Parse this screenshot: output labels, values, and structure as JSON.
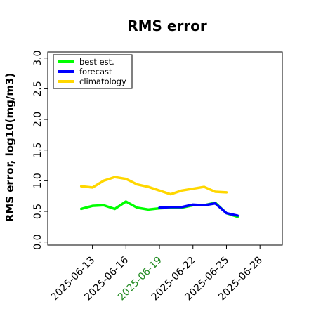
{
  "chart_data": {
    "type": "line",
    "title": "RMS error",
    "xlabel": "",
    "ylabel": "RMS error, log10(mg/m3)",
    "ylim": [
      -0.05,
      3.1
    ],
    "y_ticks": [
      0.0,
      0.5,
      1.0,
      1.5,
      2.0,
      2.5,
      3.0
    ],
    "y_tick_labels": [
      "0.0",
      "0.5",
      "1.0",
      "1.5",
      "2.0",
      "2.5",
      "3.0"
    ],
    "x_ticks": [
      "2025-06-13",
      "2025-06-16",
      "2025-06-19",
      "2025-06-22",
      "2025-06-25",
      "2025-06-28"
    ],
    "x_tick_highlight": "2025-06-19",
    "x_tick_highlight_color": "#228B22",
    "xlim": [
      "2025-06-09",
      "2025-06-30"
    ],
    "grid": false,
    "legend": "top-left",
    "series": [
      {
        "name": "best est.",
        "color": "#00ff00",
        "points": [
          [
            "2025-06-12",
            0.54
          ],
          [
            "2025-06-13",
            0.59
          ],
          [
            "2025-06-14",
            0.6
          ],
          [
            "2025-06-15",
            0.54
          ],
          [
            "2025-06-16",
            0.66
          ],
          [
            "2025-06-17",
            0.56
          ],
          [
            "2025-06-18",
            0.53
          ],
          [
            "2025-06-19",
            0.55
          ],
          [
            "2025-06-20",
            0.56
          ],
          [
            "2025-06-21",
            0.56
          ],
          [
            "2025-06-22",
            0.6
          ],
          [
            "2025-06-23",
            0.6
          ],
          [
            "2025-06-24",
            0.64
          ],
          [
            "2025-06-25",
            0.47
          ],
          [
            "2025-06-26",
            0.41
          ]
        ]
      },
      {
        "name": "forecast",
        "color": "#0000ff",
        "points": [
          [
            "2025-06-19",
            0.56
          ],
          [
            "2025-06-20",
            0.57
          ],
          [
            "2025-06-21",
            0.57
          ],
          [
            "2025-06-22",
            0.61
          ],
          [
            "2025-06-23",
            0.6
          ],
          [
            "2025-06-24",
            0.63
          ],
          [
            "2025-06-25",
            0.47
          ],
          [
            "2025-06-26",
            0.43
          ]
        ]
      },
      {
        "name": "climatology",
        "color": "#ffd700",
        "points": [
          [
            "2025-06-12",
            0.91
          ],
          [
            "2025-06-13",
            0.89
          ],
          [
            "2025-06-14",
            1.0
          ],
          [
            "2025-06-15",
            1.06
          ],
          [
            "2025-06-16",
            1.03
          ],
          [
            "2025-06-17",
            0.94
          ],
          [
            "2025-06-18",
            0.9
          ],
          [
            "2025-06-19",
            0.84
          ],
          [
            "2025-06-20",
            0.78
          ],
          [
            "2025-06-21",
            0.84
          ],
          [
            "2025-06-22",
            0.87
          ],
          [
            "2025-06-23",
            0.9
          ],
          [
            "2025-06-24",
            0.82
          ],
          [
            "2025-06-25",
            0.81
          ]
        ]
      }
    ]
  }
}
